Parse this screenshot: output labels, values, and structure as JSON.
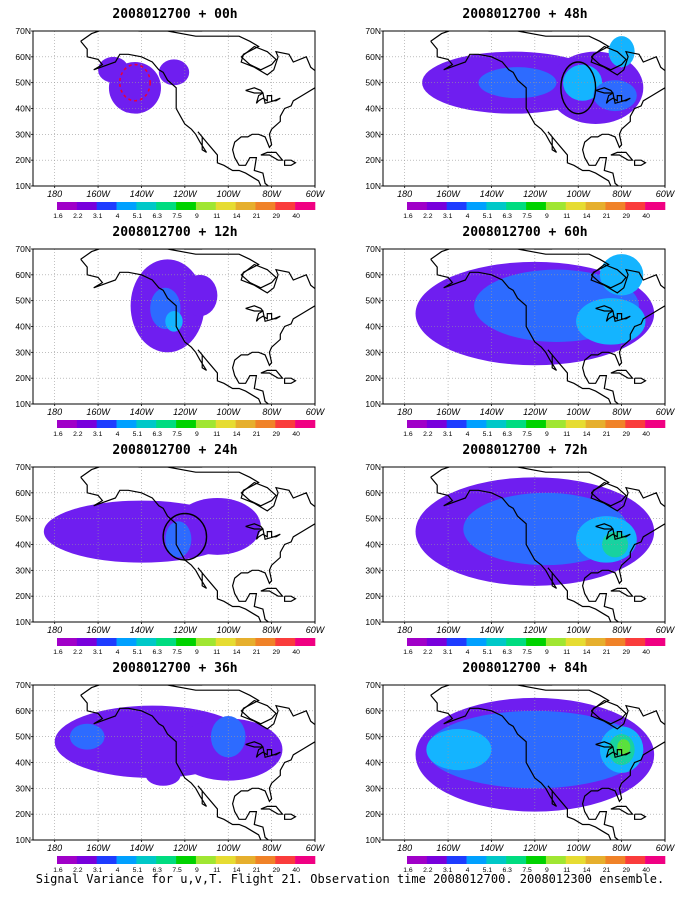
{
  "chart_data": {
    "type": "heatmap",
    "panels": [
      {
        "title": "2008012700 + 00h",
        "forecast_hour": 0,
        "blobs": [
          {
            "lon": -143,
            "lat": 48,
            "rx": 12,
            "ry": 10,
            "lvl": 1
          },
          {
            "lon": -153,
            "lat": 55,
            "rx": 7,
            "ry": 5,
            "lvl": 1
          },
          {
            "lon": -125,
            "lat": 54,
            "rx": 7,
            "ry": 5,
            "lvl": 1
          }
        ],
        "target_ellipse": {
          "lon": -143,
          "lat": 50,
          "rx": 7,
          "ry": 7,
          "style": "dashed-red"
        }
      },
      {
        "title": "2008012700 + 48h",
        "forecast_hour": 48,
        "blobs": [
          {
            "lon": -130,
            "lat": 50,
            "rx": 42,
            "ry": 12,
            "lvl": 1
          },
          {
            "lon": -92,
            "lat": 48,
            "rx": 22,
            "ry": 14,
            "lvl": 1
          },
          {
            "lon": -128,
            "lat": 50,
            "rx": 18,
            "ry": 6,
            "lvl": 2
          },
          {
            "lon": -98,
            "lat": 50,
            "rx": 9,
            "ry": 7,
            "lvl": 3
          },
          {
            "lon": -80,
            "lat": 62,
            "rx": 6,
            "ry": 6,
            "lvl": 3
          },
          {
            "lon": -83,
            "lat": 45,
            "rx": 10,
            "ry": 6,
            "lvl": 2
          }
        ],
        "target_ellipse": {
          "lon": -100,
          "lat": 48,
          "rx": 8,
          "ry": 10,
          "style": "solid-black"
        }
      },
      {
        "title": "2008012700 + 12h",
        "forecast_hour": 12,
        "blobs": [
          {
            "lon": -128,
            "lat": 48,
            "rx": 17,
            "ry": 18,
            "lvl": 1
          },
          {
            "lon": -113,
            "lat": 52,
            "rx": 8,
            "ry": 8,
            "lvl": 1
          },
          {
            "lon": -129,
            "lat": 47,
            "rx": 7,
            "ry": 8,
            "lvl": 2
          },
          {
            "lon": -125,
            "lat": 42,
            "rx": 4,
            "ry": 4,
            "lvl": 3
          }
        ],
        "target_ellipse": null
      },
      {
        "title": "2008012700 + 60h",
        "forecast_hour": 60,
        "blobs": [
          {
            "lon": -120,
            "lat": 45,
            "rx": 55,
            "ry": 20,
            "lvl": 1
          },
          {
            "lon": -110,
            "lat": 48,
            "rx": 38,
            "ry": 14,
            "lvl": 2
          },
          {
            "lon": -85,
            "lat": 42,
            "rx": 16,
            "ry": 9,
            "lvl": 3
          },
          {
            "lon": -80,
            "lat": 60,
            "rx": 10,
            "ry": 8,
            "lvl": 3
          }
        ],
        "target_ellipse": null
      },
      {
        "title": "2008012700 + 24h",
        "forecast_hour": 24,
        "blobs": [
          {
            "lon": -140,
            "lat": 45,
            "rx": 45,
            "ry": 12,
            "lvl": 1
          },
          {
            "lon": -105,
            "lat": 47,
            "rx": 20,
            "ry": 11,
            "lvl": 1
          },
          {
            "lon": -123,
            "lat": 42,
            "rx": 6,
            "ry": 7,
            "lvl": 2
          }
        ],
        "target_ellipse": {
          "lon": -120,
          "lat": 43,
          "rx": 10,
          "ry": 9,
          "style": "solid-black"
        }
      },
      {
        "title": "2008012700 + 72h",
        "forecast_hour": 72,
        "blobs": [
          {
            "lon": -120,
            "lat": 45,
            "rx": 55,
            "ry": 21,
            "lvl": 1
          },
          {
            "lon": -115,
            "lat": 46,
            "rx": 38,
            "ry": 14,
            "lvl": 2
          },
          {
            "lon": -87,
            "lat": 42,
            "rx": 14,
            "ry": 9,
            "lvl": 3
          },
          {
            "lon": -83,
            "lat": 40,
            "rx": 6,
            "ry": 5,
            "lvl": 4
          }
        ],
        "target_ellipse": null
      },
      {
        "title": "2008012700 + 36h",
        "forecast_hour": 36,
        "blobs": [
          {
            "lon": -135,
            "lat": 48,
            "rx": 45,
            "ry": 14,
            "lvl": 1
          },
          {
            "lon": -100,
            "lat": 45,
            "rx": 25,
            "ry": 12,
            "lvl": 1
          },
          {
            "lon": -165,
            "lat": 50,
            "rx": 8,
            "ry": 5,
            "lvl": 2
          },
          {
            "lon": -100,
            "lat": 50,
            "rx": 8,
            "ry": 8,
            "lvl": 2
          },
          {
            "lon": -130,
            "lat": 35,
            "rx": 8,
            "ry": 4,
            "lvl": 1
          }
        ],
        "target_ellipse": null
      },
      {
        "title": "2008012700 + 84h",
        "forecast_hour": 84,
        "blobs": [
          {
            "lon": -120,
            "lat": 43,
            "rx": 55,
            "ry": 22,
            "lvl": 1
          },
          {
            "lon": -120,
            "lat": 45,
            "rx": 50,
            "ry": 15,
            "lvl": 2
          },
          {
            "lon": -155,
            "lat": 45,
            "rx": 15,
            "ry": 8,
            "lvl": 3
          },
          {
            "lon": -80,
            "lat": 45,
            "rx": 10,
            "ry": 9,
            "lvl": 3
          },
          {
            "lon": -80,
            "lat": 45,
            "rx": 6,
            "ry": 6,
            "lvl": 4
          },
          {
            "lon": -79,
            "lat": 46,
            "rx": 3,
            "ry": 3,
            "lvl": 5
          }
        ],
        "target_ellipse": null
      }
    ],
    "lon_range": [
      -190,
      -60
    ],
    "lat_range": [
      10,
      70
    ],
    "x_ticks": [
      "180",
      "160W",
      "140W",
      "120W",
      "100W",
      "80W",
      "60W"
    ],
    "y_ticks": [
      "10N",
      "20N",
      "30N",
      "40N",
      "50N",
      "60N",
      "70N"
    ],
    "colorbar": {
      "labels": [
        "1.6",
        "2.2",
        "3.1",
        "4",
        "5.1",
        "6.3",
        "7.5",
        "9",
        "11",
        "14",
        "21",
        "29",
        "40"
      ],
      "colors": [
        "#a000c8",
        "#7800dc",
        "#1e3cff",
        "#00a0ff",
        "#00c8c8",
        "#00dc80",
        "#00d200",
        "#a0e632",
        "#e6dc32",
        "#e6af2d",
        "#f08228",
        "#fa3c3c",
        "#f00082"
      ]
    },
    "levels_colors": [
      "#9b2bd6",
      "#6f1ef0",
      "#2d6bff",
      "#14b4ff",
      "#18d2a0",
      "#5ae13c"
    ],
    "grid": true
  },
  "caption": "Signal Variance for u,v,T. Flight 21. Observation time 2008012700. 2008012300 ensemble."
}
